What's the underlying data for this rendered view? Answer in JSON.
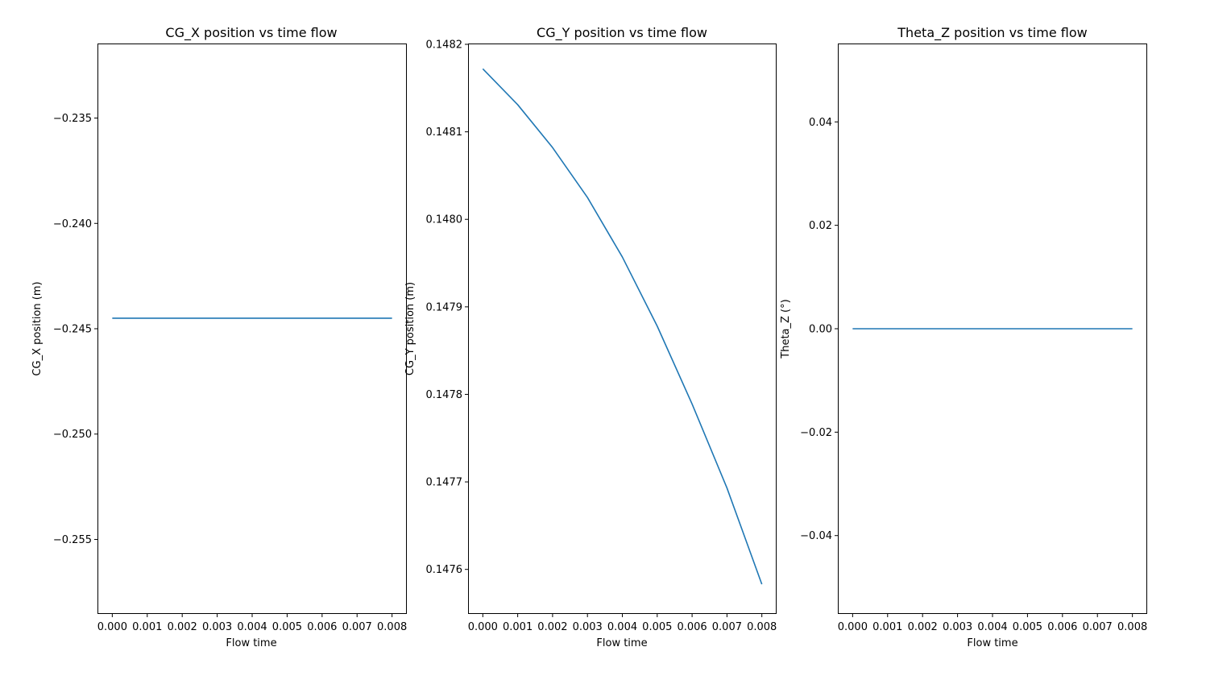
{
  "chart_data": [
    {
      "type": "line",
      "title": "CG_X position vs time flow",
      "xlabel": "Flow time",
      "ylabel": "CG_X position (m)",
      "xlim": [
        -0.0004,
        0.0084
      ],
      "ylim": [
        -0.2585,
        -0.2315
      ],
      "xticks": [
        "0.000",
        "0.001",
        "0.002",
        "0.003",
        "0.004",
        "0.005",
        "0.006",
        "0.007",
        "0.008"
      ],
      "yticks": [
        "−0.255",
        "−0.250",
        "−0.245",
        "−0.240",
        "−0.235"
      ],
      "grid": false,
      "series": [
        {
          "color": "#1f77b4",
          "x": [
            0.0,
            0.001,
            0.002,
            0.003,
            0.004,
            0.005,
            0.006,
            0.007,
            0.008
          ],
          "values": [
            -0.2445,
            -0.2445,
            -0.2445,
            -0.2445,
            -0.2445,
            -0.2445,
            -0.2445,
            -0.2445,
            -0.2445
          ]
        }
      ]
    },
    {
      "type": "line",
      "title": "CG_Y position vs time flow",
      "xlabel": "Flow time",
      "ylabel": "CG_Y position (m)",
      "xlim": [
        -0.0004,
        0.0084
      ],
      "ylim": [
        0.14755,
        0.1482
      ],
      "xticks": [
        "0.000",
        "0.001",
        "0.002",
        "0.003",
        "0.004",
        "0.005",
        "0.006",
        "0.007",
        "0.008"
      ],
      "yticks": [
        "0.1476",
        "0.1477",
        "0.1478",
        "0.1479",
        "0.1480",
        "0.1481",
        "0.1482"
      ],
      "grid": false,
      "series": [
        {
          "color": "#1f77b4",
          "x": [
            0.0,
            0.001,
            0.002,
            0.003,
            0.004,
            0.005,
            0.006,
            0.007,
            0.008
          ],
          "values": [
            0.148172,
            0.148131,
            0.148082,
            0.148025,
            0.147957,
            0.147878,
            0.147789,
            0.147693,
            0.147583
          ]
        }
      ]
    },
    {
      "type": "line",
      "title": "Theta_Z position vs time flow",
      "xlabel": "Flow time",
      "ylabel": "Theta_Z (°)",
      "xlim": [
        -0.0004,
        0.0084
      ],
      "ylim": [
        -0.055,
        0.055
      ],
      "xticks": [
        "0.000",
        "0.001",
        "0.002",
        "0.003",
        "0.004",
        "0.005",
        "0.006",
        "0.007",
        "0.008"
      ],
      "yticks": [
        "−0.04",
        "−0.02",
        "0.00",
        "0.02",
        "0.04"
      ],
      "grid": false,
      "series": [
        {
          "color": "#1f77b4",
          "x": [
            0.0,
            0.001,
            0.002,
            0.003,
            0.004,
            0.005,
            0.006,
            0.007,
            0.008
          ],
          "values": [
            0.0,
            0.0,
            0.0,
            0.0,
            0.0,
            0.0,
            0.0,
            0.0,
            0.0
          ]
        }
      ]
    }
  ]
}
